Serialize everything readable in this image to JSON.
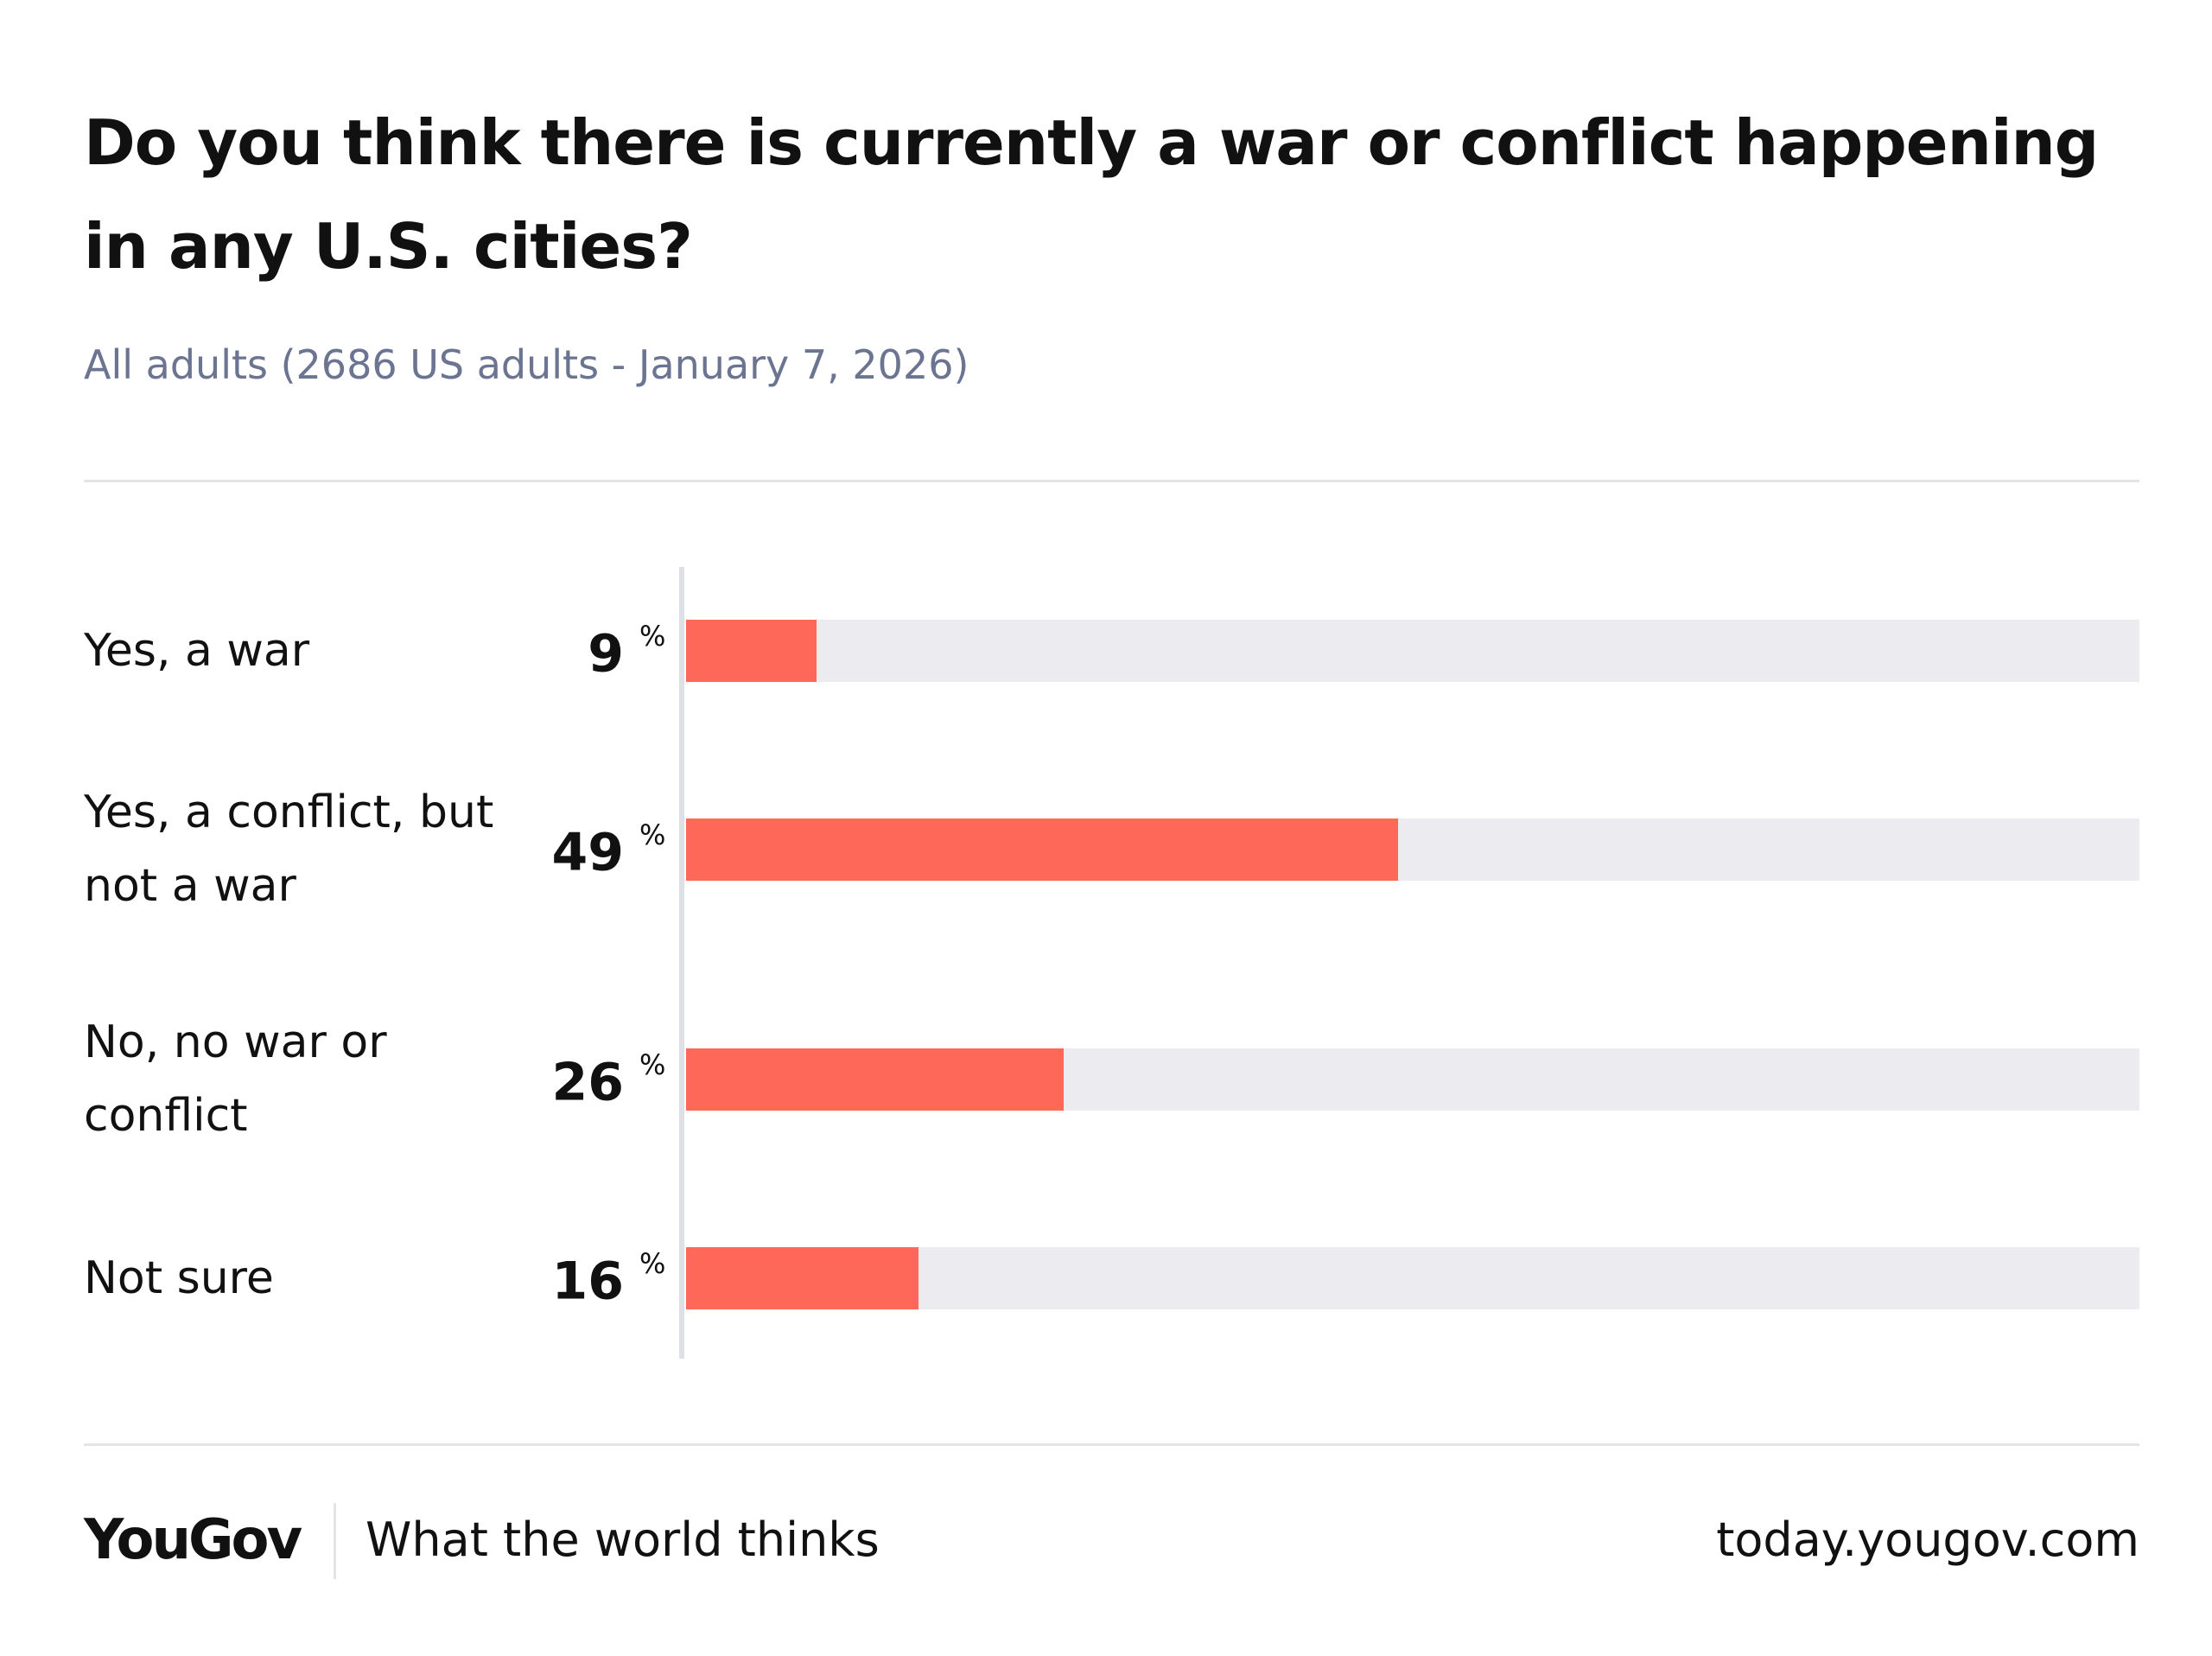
{
  "chart_data": {
    "type": "bar",
    "title": "Do you think there is currently a war or conflict happening in any U.S. cities?",
    "subtitle": "All adults (2686 US adults - January 7, 2026)",
    "categories": [
      "Yes, a war",
      "Yes, a conflict, but not a war",
      "No, no war or conflict",
      "Not sure"
    ],
    "values": [
      9,
      49,
      26,
      16
    ],
    "unit": "%",
    "color": "#fe6859",
    "track_color": "#ececf0",
    "xlim": [
      0,
      100
    ]
  },
  "footer": {
    "logo": "YouGov",
    "tagline": "What the world thinks",
    "url": "today.yougov.com"
  }
}
